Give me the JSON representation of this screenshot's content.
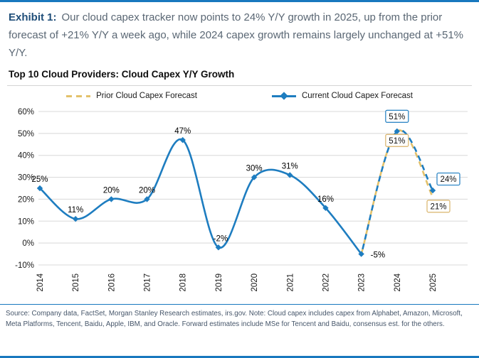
{
  "header": {
    "exhibit_label": "Exhibit 1:",
    "exhibit_text": "Our cloud capex tracker now points to 24% Y/Y growth in 2025, up from the prior forecast of +21% Y/Y a week ago, while 2024 capex growth remains largely unchanged at +51% Y/Y."
  },
  "chart_data": {
    "type": "line",
    "title": "Top 10 Cloud Providers: Cloud Capex Y/Y Growth",
    "categories": [
      "2014",
      "2015",
      "2016",
      "2017",
      "2018",
      "2019",
      "2020",
      "2021",
      "2022",
      "2023",
      "2024",
      "2025"
    ],
    "ylim": [
      -10,
      60
    ],
    "ytick_step": 10,
    "ytick_labels": [
      "60%",
      "50%",
      "40%",
      "30%",
      "20%",
      "10%",
      "0%",
      "-10%"
    ],
    "grid": true,
    "legend_position": "top",
    "series": [
      {
        "name": "Prior Cloud Capex Forecast",
        "color": "#e3c16b",
        "style": "dashed",
        "values": [
          null,
          null,
          null,
          null,
          null,
          null,
          null,
          null,
          null,
          -5,
          51,
          21
        ],
        "data_labels": [
          null,
          null,
          null,
          null,
          null,
          null,
          null,
          null,
          null,
          null,
          "51%",
          "21%"
        ]
      },
      {
        "name": "Current Cloud Capex Forecast",
        "color": "#1e7dc0",
        "style": "solid-then-dashed",
        "solid_through": "2023",
        "marker": "diamond",
        "values": [
          25,
          11,
          20,
          20,
          47,
          -2,
          30,
          31,
          16,
          -5,
          51,
          24
        ],
        "data_labels": [
          "25%",
          "11%",
          "20%",
          "20%",
          "47%",
          "-2%",
          "30%",
          "31%",
          "16%",
          "-5%",
          "51%",
          "24%"
        ]
      }
    ],
    "forecast_labels_boxed": true,
    "forecast_box_colors": {
      "current": "#1e7dc0",
      "prior": "#d9b36a"
    }
  },
  "footer": {
    "source_note": "Source: Company data, FactSet, Morgan Stanley Research estimates, irs.gov. Note: Cloud capex includes capex from Alphabet, Amazon, Microsoft, Meta Platforms, Tencent, Baidu, Apple, IBM, and Oracle. Forward estimates include MSe for Tencent and Baidu, consensus est. for the others."
  }
}
